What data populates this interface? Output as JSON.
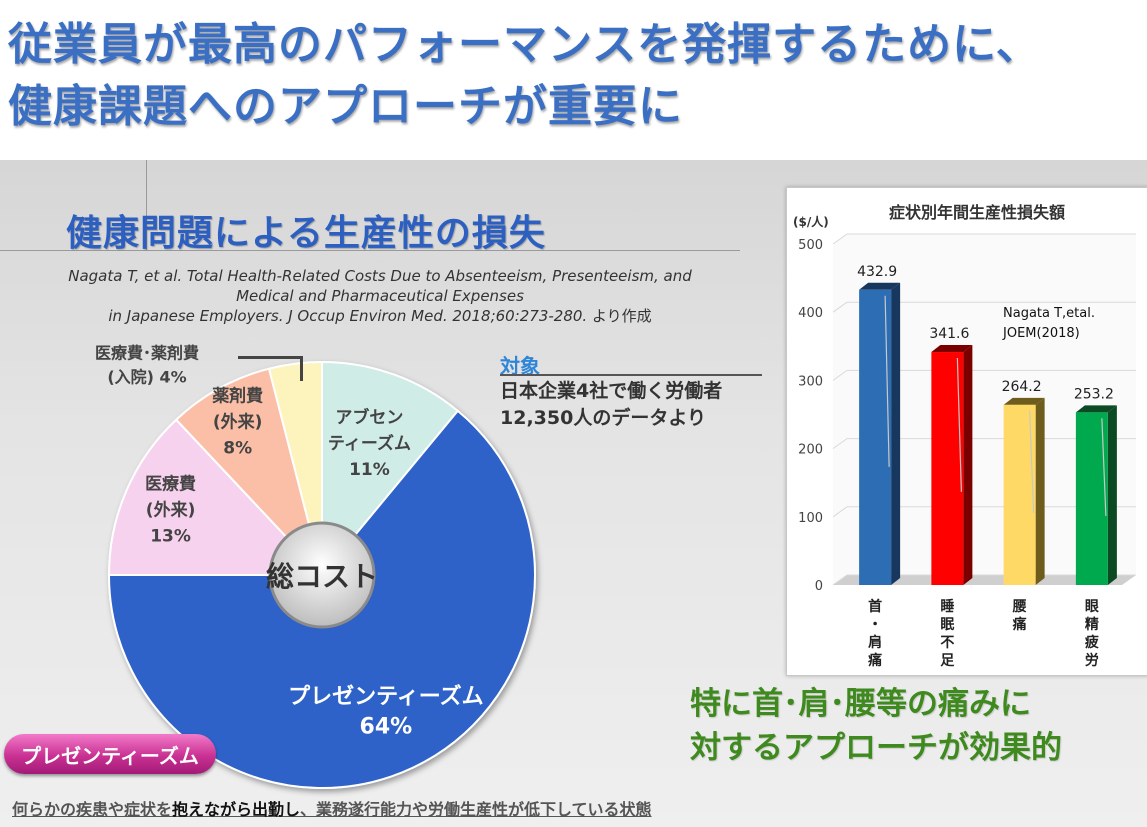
{
  "title_line1": "従業員が最高のパフォーマンスを発揮するために、",
  "title_line2": "健康課題へのアプローチが重要に",
  "section_title": "健康問題による生産性の損失",
  "citation": {
    "line1": "Nagata T, et al. Total Health-Related Costs Due to Absenteeism, Presenteeism, and",
    "line2": "Medical and Pharmaceutical Expenses",
    "line3": "in Japanese Employers. J Occup Environ Med. 2018;60:273-280.",
    "suffix": " より作成"
  },
  "target": {
    "label": "対象",
    "description": "日本企業4社で働く労働者\n12,350人のデータより"
  },
  "chart_data": [
    {
      "type": "pie",
      "center_label": "総コスト",
      "slices": [
        {
          "label": "アブセンティーズム",
          "value": 11,
          "color": "#d0ece7",
          "text_color": "#444444"
        },
        {
          "label": "プレゼンティーズム",
          "value": 64,
          "color": "#2f62c9",
          "text_color": "#ffffff"
        },
        {
          "label": "医療費(外来)",
          "value": 13,
          "color": "#f7d2ee",
          "text_color": "#444444"
        },
        {
          "label": "薬剤費(外来)",
          "value": 8,
          "color": "#fbbfa8",
          "text_color": "#444444"
        },
        {
          "label": "医療費・薬剤費(入院)",
          "value": 4,
          "color": "#fdf3bd",
          "text_color": "#444444"
        }
      ],
      "slice_text": [
        {
          "lines": [
            "アブセン",
            "ティーズム",
            "11%"
          ]
        },
        {
          "lines": [
            "プレゼンティーズム",
            "64%"
          ]
        },
        {
          "lines": [
            "医療費",
            "(外来)",
            "13%"
          ]
        },
        {
          "lines": [
            "薬剤費",
            "(外来)",
            "8%"
          ]
        },
        {
          "lines": [
            "医療費･薬剤費",
            "(入院) 4%"
          ]
        }
      ]
    },
    {
      "type": "bar",
      "title": "症状別年間生産性損失額",
      "ylabel": "($/人)",
      "ylim": [
        0,
        500
      ],
      "yticks": [
        0,
        100,
        200,
        300,
        400,
        500
      ],
      "categories": [
        "首・肩痛",
        "睡眠不足",
        "腰痛",
        "眼精疲労"
      ],
      "values": [
        432.9,
        341.6,
        264.2,
        253.2
      ],
      "value_labels": [
        "432.9",
        "341.6",
        "264.2",
        "253.2"
      ],
      "colors": [
        "#2d6db4",
        "#ff0000",
        "#ffd966",
        "#00a84e"
      ],
      "side_colors": [
        "#17375e",
        "#7a0000",
        "#6e5c1c",
        "#0c4a24"
      ]
    }
  ],
  "source_note": "Nagata T,etal.\nJOEM(2018)",
  "emphasis": "特に首･肩･腰等の痛みに\n対するアプローチが効果的",
  "badge": "プレゼンティーズム",
  "definition": {
    "part1": "何らかの疾患や症状を",
    "part2": "抱えながら出勤し",
    "part3": "、業務遂行能力や労働生産性が低下している状態"
  }
}
